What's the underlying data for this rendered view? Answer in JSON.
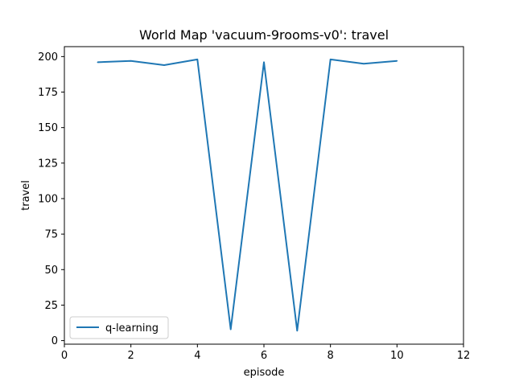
{
  "chart_data": {
    "type": "line",
    "title": "World Map 'vacuum-9rooms-v0': travel",
    "xlabel": "episode",
    "ylabel": "travel",
    "xlim": [
      0,
      12
    ],
    "ylim": [
      -2.5,
      207
    ],
    "xticks": [
      0,
      2,
      4,
      6,
      8,
      10,
      12
    ],
    "yticks": [
      0,
      25,
      50,
      75,
      100,
      125,
      150,
      175,
      200
    ],
    "grid": false,
    "legend_position": "lower-left",
    "series": [
      {
        "name": "q-learning",
        "color": "#1f77b4",
        "x": [
          1,
          2,
          3,
          4,
          5,
          6,
          7,
          8,
          9,
          10
        ],
        "y": [
          196,
          197,
          194,
          198,
          8,
          196,
          7,
          198,
          195,
          197
        ]
      }
    ]
  }
}
